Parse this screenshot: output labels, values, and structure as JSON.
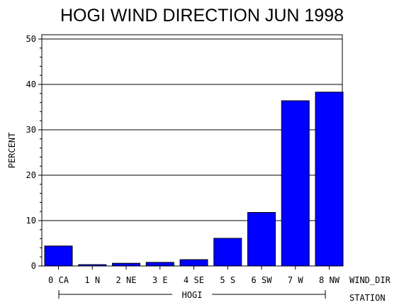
{
  "chart_data": {
    "type": "bar",
    "title": "HOGI WIND DIRECTION JUN 1998",
    "ylabel": "PERCENT",
    "xlabel": "WIND_DIR",
    "group_axis_label": "STATION",
    "group_label": "HOGI",
    "ylim": [
      0,
      50
    ],
    "yticks": [
      0,
      10,
      20,
      30,
      40,
      50
    ],
    "grid": true,
    "categories": [
      "0 CA",
      "1 N",
      "2 NE",
      "3 E",
      "4 SE",
      "5 S",
      "6 SW",
      "7 W",
      "8 NW"
    ],
    "values": [
      4.4,
      0.3,
      0.6,
      0.8,
      1.4,
      6.1,
      11.8,
      36.4,
      38.3
    ],
    "bar_color": "#0000ff"
  }
}
